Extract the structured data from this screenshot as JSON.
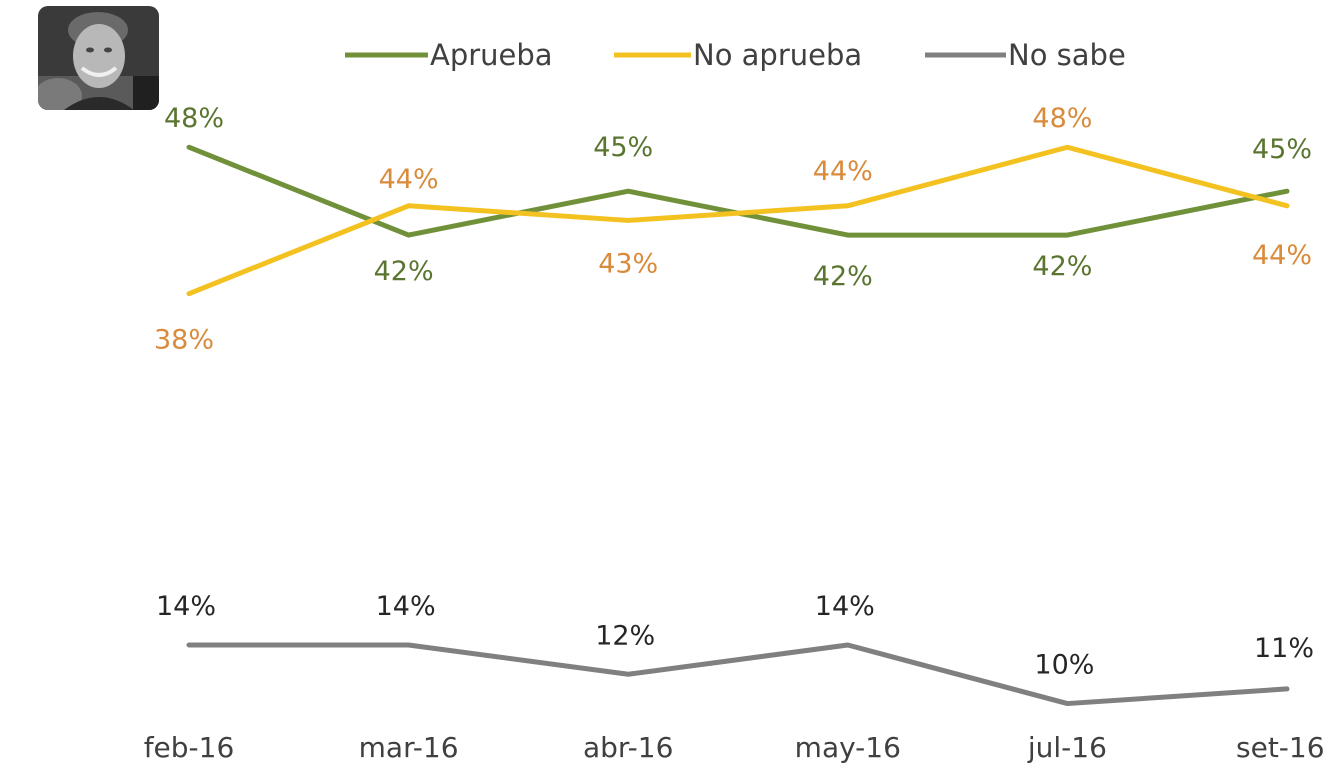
{
  "chart_data": {
    "type": "line",
    "title": "",
    "xlabel": "",
    "ylabel": "",
    "categories": [
      "feb-16",
      "mar-16",
      "abr-16",
      "may-16",
      "jul-16",
      "set-16"
    ],
    "ylim": [
      0,
      50
    ],
    "grid": false,
    "legend_position": "top",
    "series": [
      {
        "name": "Aprueba",
        "color": "#70913a",
        "label_color": "#5a7530",
        "values": [
          48,
          42,
          45,
          42,
          42,
          45
        ],
        "labels": [
          "48%",
          "42%",
          "45%",
          "42%",
          "42%",
          "45%"
        ]
      },
      {
        "name": "No aprueba",
        "color": "#f3c220",
        "label_color": "#d98b3c",
        "values": [
          38,
          44,
          43,
          44,
          48,
          44
        ],
        "labels": [
          "38%",
          "44%",
          "43%",
          "44%",
          "48%",
          "44%"
        ]
      },
      {
        "name": "No sabe",
        "color": "#808080",
        "label_color": "#262626",
        "values": [
          14,
          14,
          12,
          14,
          10,
          11
        ],
        "labels": [
          "14%",
          "14%",
          "12%",
          "14%",
          "10%",
          "11%"
        ]
      }
    ]
  },
  "photo": {
    "icon": "portrait-photo-icon"
  }
}
